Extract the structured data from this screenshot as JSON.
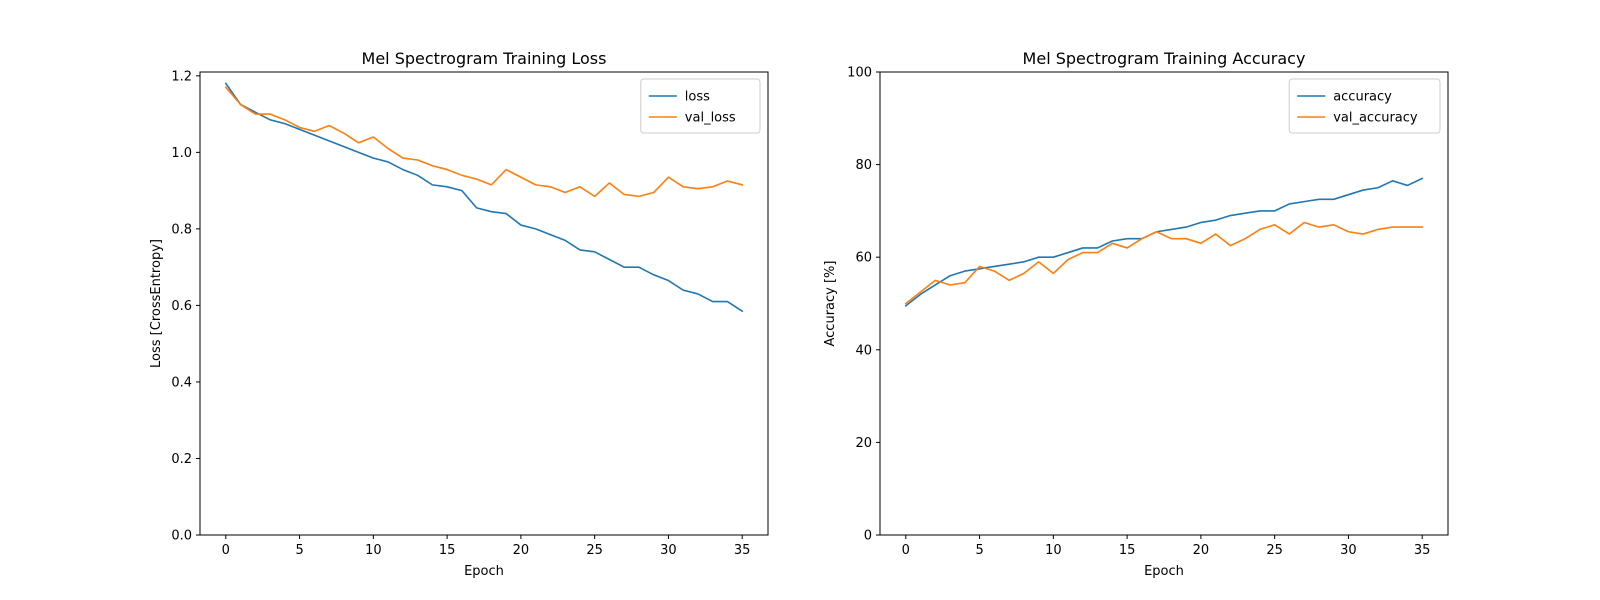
{
  "chart_data": [
    {
      "type": "line",
      "title": "Mel Spectrogram Training Loss",
      "xlabel": "Epoch",
      "ylabel": "Loss [CrossEntropy]",
      "xlim": [
        -1.75,
        36.75
      ],
      "ylim": [
        0,
        1.21
      ],
      "xticks": [
        0,
        5,
        10,
        15,
        20,
        25,
        30,
        35
      ],
      "yticks": [
        0.0,
        0.2,
        0.4,
        0.6,
        0.8,
        1.0,
        1.2
      ],
      "ytick_decimals": 1,
      "legend": "top-right",
      "grid": false,
      "x": [
        0,
        1,
        2,
        3,
        4,
        5,
        6,
        7,
        8,
        9,
        10,
        11,
        12,
        13,
        14,
        15,
        16,
        17,
        18,
        19,
        20,
        21,
        22,
        23,
        24,
        25,
        26,
        27,
        28,
        29,
        30,
        31,
        32,
        33,
        34,
        35
      ],
      "series": [
        {
          "name": "loss",
          "color": "#1f77b4",
          "values": [
            1.18,
            1.125,
            1.105,
            1.085,
            1.075,
            1.06,
            1.045,
            1.03,
            1.015,
            1.0,
            0.985,
            0.975,
            0.955,
            0.94,
            0.915,
            0.91,
            0.9,
            0.855,
            0.845,
            0.84,
            0.81,
            0.8,
            0.785,
            0.77,
            0.745,
            0.74,
            0.72,
            0.7,
            0.7,
            0.68,
            0.665,
            0.64,
            0.63,
            0.61,
            0.61,
            0.585
          ]
        },
        {
          "name": "val_loss",
          "color": "#ff7f0e",
          "values": [
            1.17,
            1.125,
            1.1,
            1.1,
            1.085,
            1.065,
            1.055,
            1.07,
            1.05,
            1.025,
            1.04,
            1.01,
            0.985,
            0.98,
            0.965,
            0.955,
            0.94,
            0.93,
            0.915,
            0.955,
            0.935,
            0.915,
            0.91,
            0.895,
            0.91,
            0.885,
            0.92,
            0.89,
            0.885,
            0.895,
            0.935,
            0.91,
            0.905,
            0.91,
            0.925,
            0.915
          ]
        }
      ]
    },
    {
      "type": "line",
      "title": "Mel Spectrogram Training Accuracy",
      "xlabel": "Epoch",
      "ylabel": "Accuracy [%]",
      "xlim": [
        -1.75,
        36.75
      ],
      "ylim": [
        0,
        100
      ],
      "xticks": [
        0,
        5,
        10,
        15,
        20,
        25,
        30,
        35
      ],
      "yticks": [
        0,
        20,
        40,
        60,
        80,
        100
      ],
      "ytick_decimals": 0,
      "legend": "top-right",
      "grid": false,
      "x": [
        0,
        1,
        2,
        3,
        4,
        5,
        6,
        7,
        8,
        9,
        10,
        11,
        12,
        13,
        14,
        15,
        16,
        17,
        18,
        19,
        20,
        21,
        22,
        23,
        24,
        25,
        26,
        27,
        28,
        29,
        30,
        31,
        32,
        33,
        34,
        35
      ],
      "series": [
        {
          "name": "accuracy",
          "color": "#1f77b4",
          "values": [
            49.5,
            52,
            54,
            56,
            57,
            57.5,
            58,
            58.5,
            59,
            60,
            60,
            61,
            62,
            62,
            63.5,
            64,
            64,
            65.5,
            66,
            66.5,
            67.5,
            68,
            69,
            69.5,
            70,
            70,
            71.5,
            72,
            72.5,
            72.5,
            73.5,
            74.5,
            75,
            76.5,
            75.5,
            77
          ]
        },
        {
          "name": "val_accuracy",
          "color": "#ff7f0e",
          "values": [
            50,
            52.5,
            55,
            54,
            54.5,
            58,
            57,
            55,
            56.5,
            59,
            56.5,
            59.5,
            61,
            61,
            63,
            62,
            64,
            65.5,
            64,
            64,
            63,
            65,
            62.5,
            64,
            66,
            67,
            65,
            67.5,
            66.5,
            67,
            65.5,
            65,
            66,
            66.5,
            66.5,
            66.5
          ]
        }
      ]
    }
  ]
}
